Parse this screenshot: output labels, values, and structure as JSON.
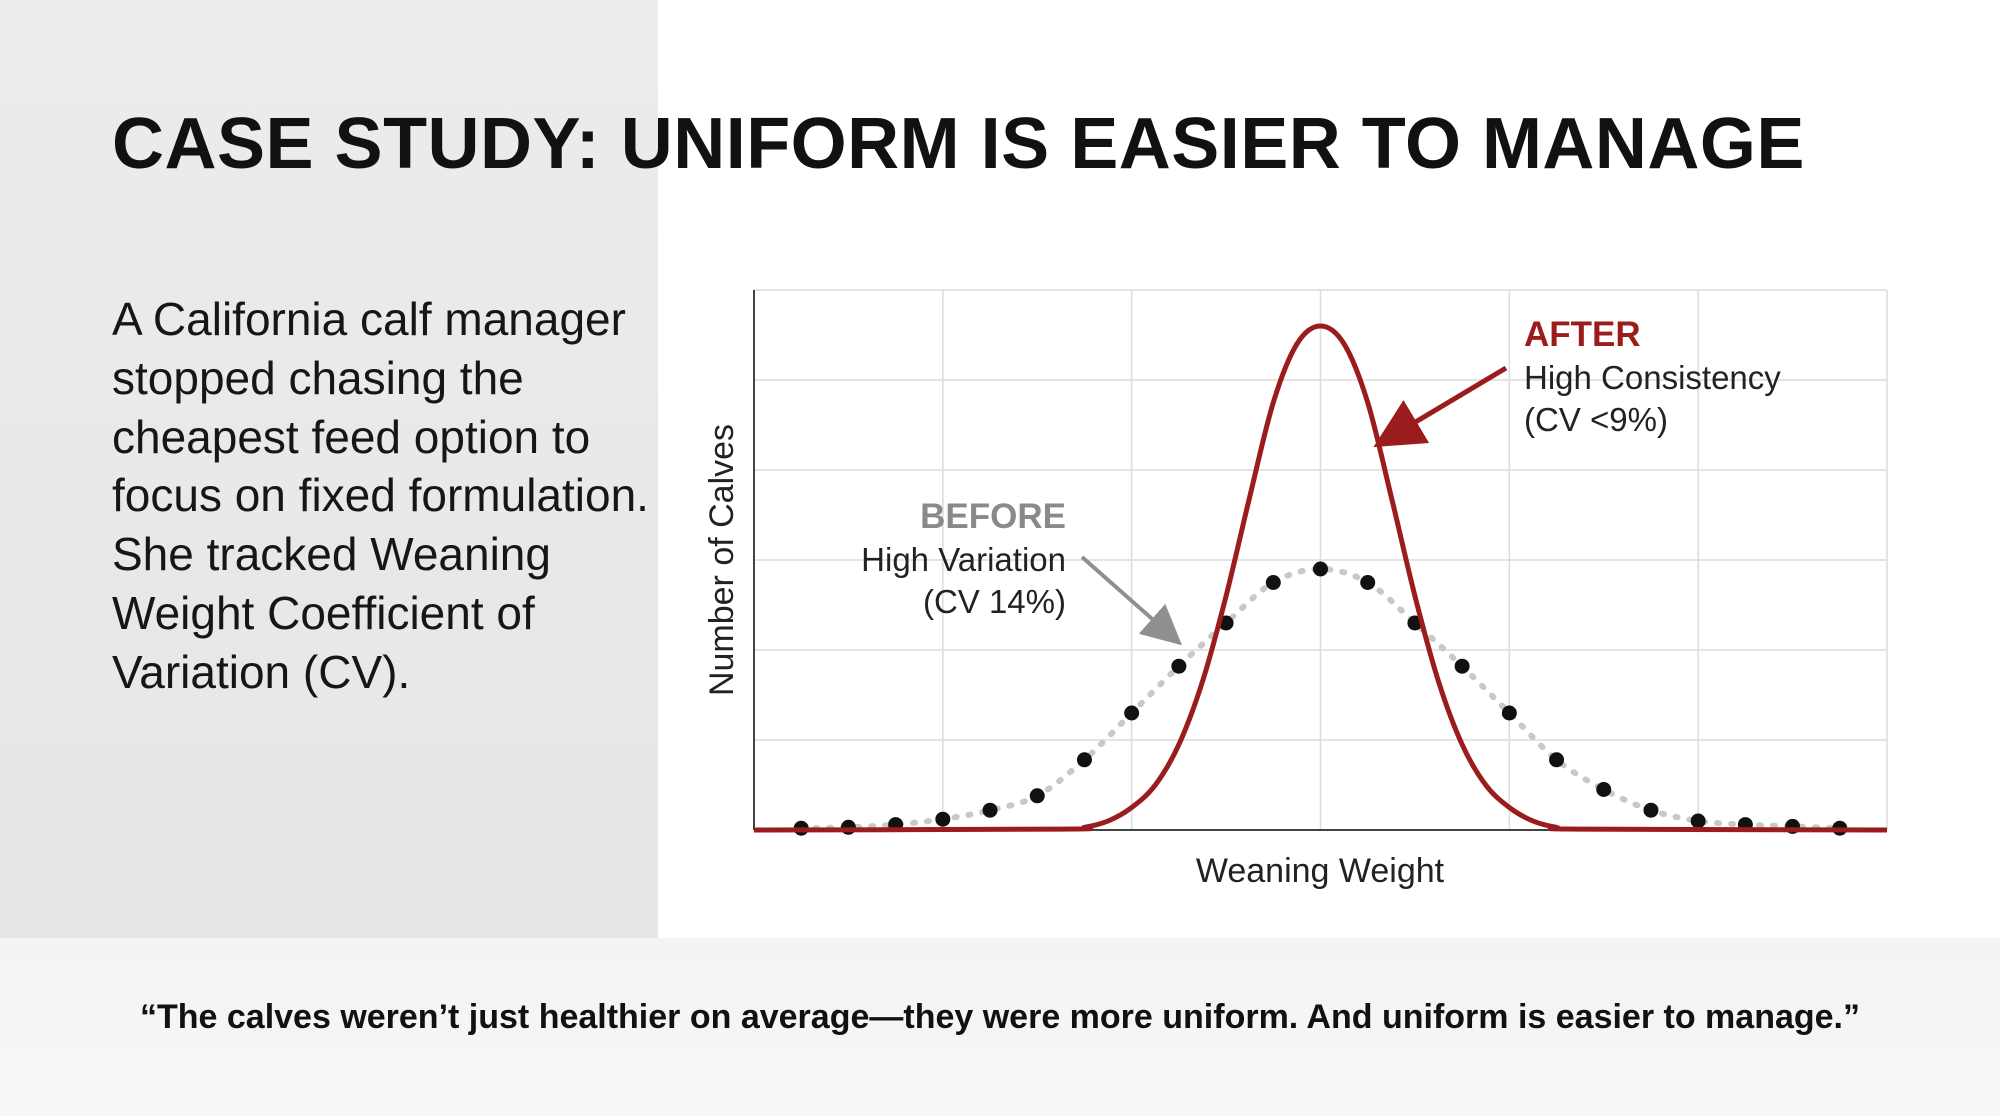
{
  "title": "CASE STUDY: UNIFORM IS EASIER TO MANAGE",
  "intro": "A California calf manager stopped chasing the cheapest feed option to focus on fixed formulation. She tracked Weaning Weight Coefficient of Variation (CV).",
  "quote": "“The calves weren’t just healthier on average—they were more uniform. And uniform is easier to manage.”",
  "colors": {
    "after": "#9b1c1c",
    "before_points": "#111111",
    "before_dotted": "#c8c8c8",
    "before_label": "#8a8a8a",
    "grid": "#dcdcdc",
    "left_panel": "#e9e9e9"
  },
  "chart_data": {
    "type": "line",
    "xlabel": "Weaning Weight",
    "ylabel": "Number of Calves",
    "x_ticks_labeled": false,
    "y_ticks_labeled": false,
    "grid": true,
    "xlim": [
      0,
      24
    ],
    "ylim": [
      0,
      6
    ],
    "series": [
      {
        "name": "AFTER",
        "style": "solid-line",
        "mean": 12,
        "peak": 5.6,
        "x": [
          0,
          6.5,
          7.0,
          7.5,
          8.0,
          8.5,
          9.0,
          9.5,
          10.0,
          10.5,
          11.0,
          11.5,
          12.0,
          12.5,
          13.0,
          13.5,
          14.0,
          14.5,
          15.0,
          15.5,
          16.0,
          16.5,
          17.0,
          17.5,
          24
        ],
        "y": [
          0,
          0.01,
          0.03,
          0.1,
          0.25,
          0.5,
          0.95,
          1.65,
          2.6,
          3.7,
          4.75,
          5.4,
          5.6,
          5.4,
          4.75,
          3.7,
          2.6,
          1.65,
          0.95,
          0.5,
          0.25,
          0.1,
          0.03,
          0.01,
          0
        ]
      },
      {
        "name": "BEFORE",
        "style": "points-with-dotted-line",
        "mean": 12,
        "peak": 2.9,
        "x": [
          1,
          2,
          3,
          4,
          5,
          6,
          7,
          8,
          9,
          10,
          11,
          12,
          13,
          14,
          15,
          16,
          17,
          18,
          19,
          20,
          21,
          22,
          23
        ],
        "y": [
          0.02,
          0.03,
          0.06,
          0.12,
          0.22,
          0.38,
          0.78,
          1.3,
          1.82,
          2.3,
          2.75,
          2.9,
          2.75,
          2.3,
          1.82,
          1.3,
          0.78,
          0.45,
          0.22,
          0.1,
          0.06,
          0.04,
          0.02
        ]
      }
    ],
    "annotations": {
      "after": {
        "heading": "AFTER",
        "line1": "High Consistency",
        "line2": "(CV <9%)"
      },
      "before": {
        "heading": "BEFORE",
        "line1": "High Variation",
        "line2": "(CV 14%)"
      }
    }
  }
}
